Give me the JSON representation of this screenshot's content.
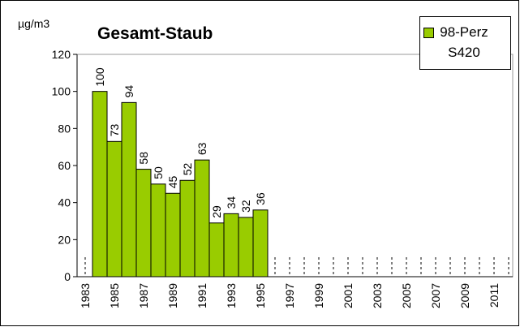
{
  "chart_data": {
    "type": "bar",
    "title": "Gesamt-Staub",
    "y_label": "µg/m3",
    "categories": [
      "1983",
      null,
      "1985",
      null,
      "1987",
      null,
      "1989",
      null,
      "1991",
      null,
      "1993",
      null,
      "1995",
      null,
      "1997",
      null,
      "1999",
      null,
      "2001",
      null,
      "2003",
      null,
      "2005",
      null,
      "2007",
      null,
      "2009",
      null,
      "2011",
      null
    ],
    "series": [
      {
        "name": "98-Perz S420",
        "color": "#99cc00",
        "values": [
          null,
          100,
          73,
          94,
          58,
          50,
          45,
          52,
          63,
          29,
          34,
          32,
          36,
          null,
          null,
          null,
          null,
          null,
          null,
          null,
          null,
          null,
          null,
          null,
          null,
          null,
          null,
          null,
          null,
          null
        ]
      }
    ],
    "ylim": [
      0,
      120
    ],
    "yticks": [
      0,
      20,
      40,
      60,
      80,
      100,
      120
    ],
    "legend": "top-right"
  }
}
